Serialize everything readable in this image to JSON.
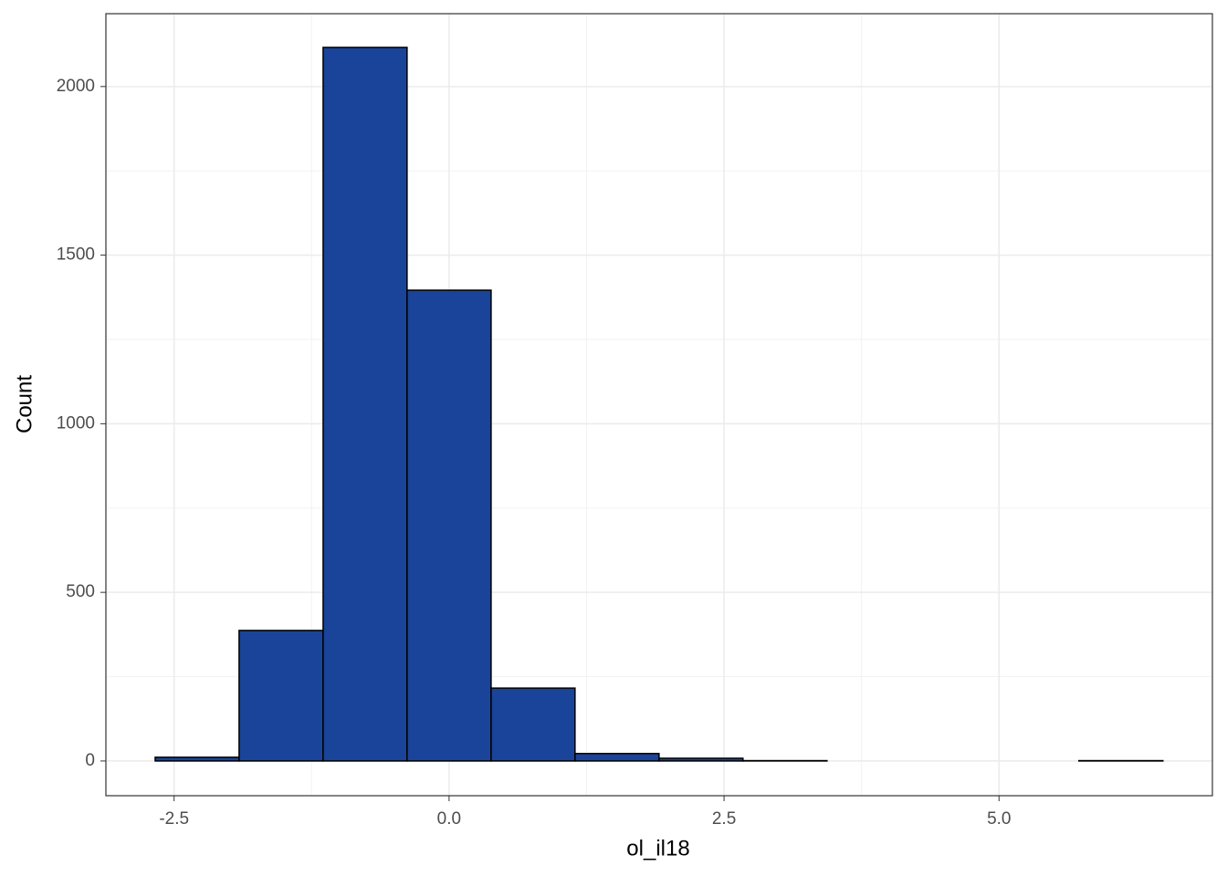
{
  "chart_data": {
    "type": "histogram",
    "x_label": "ol_il18",
    "y_label": "Count",
    "bins": [
      -2.672,
      -1.909,
      -1.145,
      -0.382,
      0.382,
      1.145,
      1.909,
      2.672,
      3.436,
      4.199,
      4.963,
      5.726,
      6.49
    ],
    "values": [
      11,
      387,
      2116,
      1396,
      216,
      22,
      8,
      1,
      0,
      0,
      0,
      1
    ],
    "color": "#1a4499",
    "edge_color": "#000000",
    "xlim": [
      -3.12,
      6.94
    ],
    "ylim": [
      -103,
      2216
    ],
    "xticks": [
      -2.5,
      {
        "value": 0,
        "label": "0.0"
      },
      2.5,
      {
        "value": 5,
        "label": "5.0"
      }
    ],
    "yticks": [
      0,
      500,
      1000,
      1500,
      2000
    ],
    "grid": true
  }
}
